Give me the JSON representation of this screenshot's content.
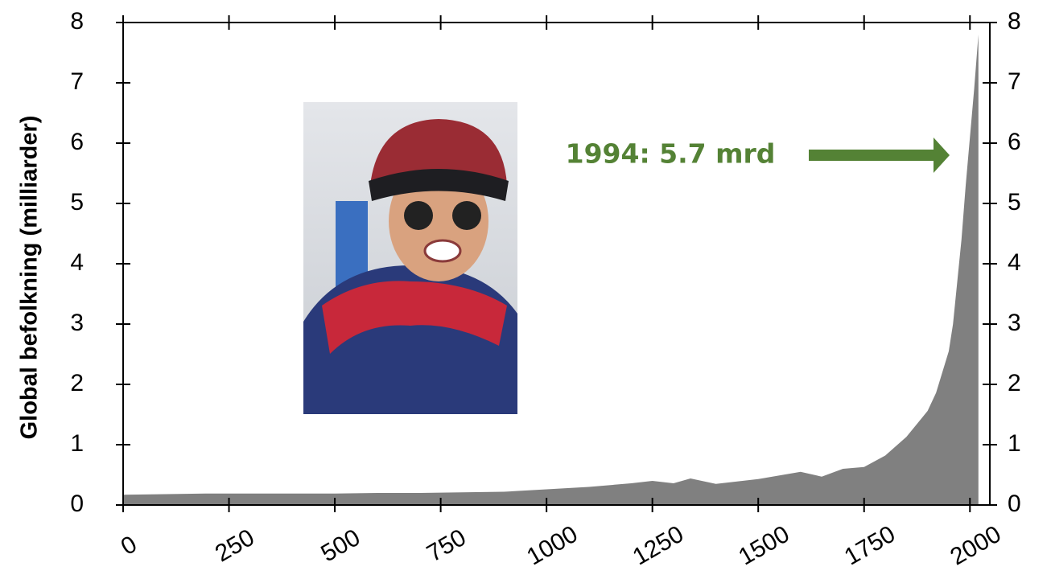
{
  "chart_data": {
    "type": "area",
    "ylabel": "Global befolkning (milliarder)",
    "annotation": "1994: 5.7 mrd",
    "annotation_color": "#548235",
    "x": [
      0,
      100,
      200,
      300,
      400,
      500,
      600,
      700,
      800,
      900,
      1000,
      1100,
      1200,
      1250,
      1300,
      1340,
      1400,
      1500,
      1600,
      1650,
      1700,
      1750,
      1800,
      1850,
      1900,
      1920,
      1950,
      1960,
      1970,
      1980,
      1990,
      2000,
      2010,
      2020
    ],
    "series": [
      {
        "color": "#808080",
        "values": [
          0.17,
          0.18,
          0.19,
          0.19,
          0.19,
          0.19,
          0.2,
          0.2,
          0.21,
          0.22,
          0.26,
          0.3,
          0.36,
          0.4,
          0.36,
          0.44,
          0.35,
          0.43,
          0.55,
          0.47,
          0.6,
          0.63,
          0.82,
          1.13,
          1.56,
          1.86,
          2.55,
          3.0,
          3.7,
          4.4,
          5.3,
          6.1,
          6.9,
          7.8
        ]
      }
    ],
    "xlim": [
      0,
      2047
    ],
    "xticks": [
      0,
      250,
      500,
      750,
      1000,
      1250,
      1500,
      1750,
      2000
    ],
    "ylim": [
      0,
      8
    ],
    "yticks": [
      0,
      1,
      2,
      3,
      4,
      5,
      6,
      7,
      8
    ],
    "y2lim": [
      0,
      8
    ],
    "y2ticks": [
      0,
      1,
      2,
      3,
      4,
      5,
      6,
      7,
      8
    ]
  }
}
